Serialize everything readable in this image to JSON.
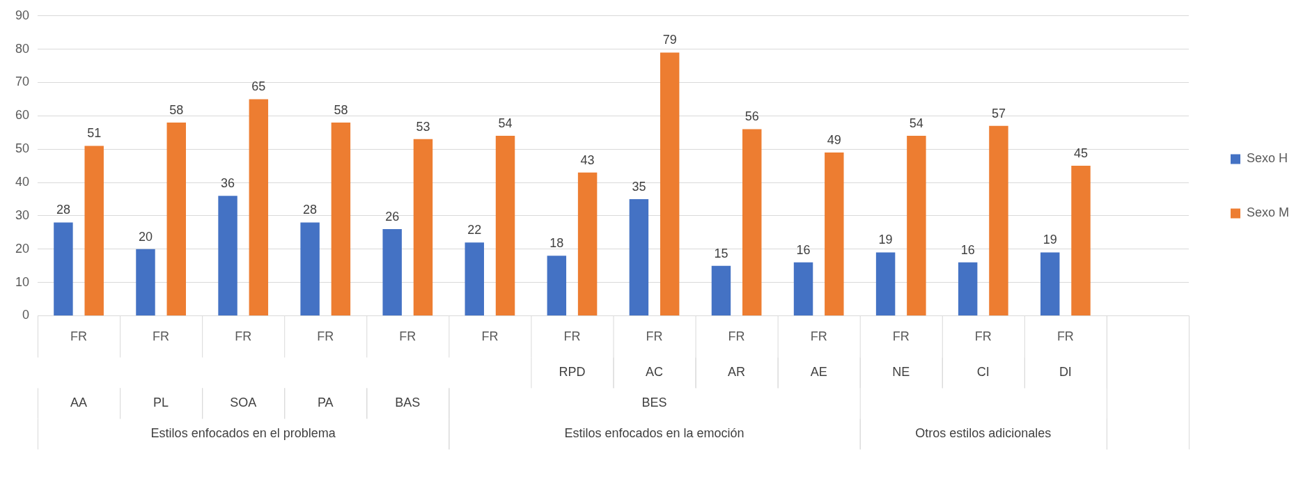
{
  "chart_data": {
    "type": "bar",
    "categories": [
      "FR",
      "FR",
      "FR",
      "FR",
      "FR",
      "FR",
      "FR",
      "FR",
      "FR",
      "FR",
      "FR",
      "FR",
      "FR",
      null
    ],
    "series": [
      {
        "name": "Sexo H",
        "color": "#4472c4",
        "values": [
          28,
          20,
          36,
          28,
          26,
          22,
          18,
          35,
          15,
          16,
          19,
          16,
          19,
          null
        ]
      },
      {
        "name": "Sexo M",
        "color": "#ed7d31",
        "values": [
          51,
          58,
          65,
          58,
          53,
          54,
          43,
          79,
          56,
          49,
          54,
          57,
          45,
          null
        ]
      }
    ],
    "annotations": [
      "RPD",
      "AC",
      "AR",
      "AE",
      "NE",
      "CI",
      "DI",
      "AA",
      "PL",
      "SOA",
      "PA",
      "BAS",
      "BES",
      "Estilos enfocados en el problema",
      "Estilos enfocados en la emoción",
      "Otros estilos adicionales"
    ],
    "ylim": [
      0,
      90
    ],
    "yticks": [
      0,
      10,
      20,
      30,
      40,
      50,
      60,
      70,
      80,
      90
    ],
    "grid": "y",
    "legend": "right",
    "data_labels": true
  }
}
